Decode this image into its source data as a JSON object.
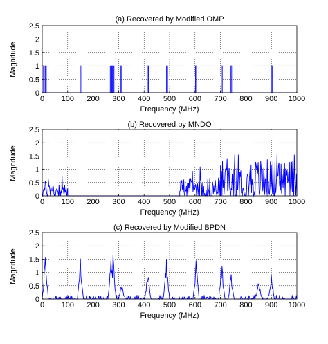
{
  "chart_data": [
    {
      "type": "line",
      "title": "(a) Recovered by Modified OMP",
      "xlabel": "Frequency (MHz)",
      "ylabel": "Magnitude",
      "xlim": [
        0,
        1000
      ],
      "ylim": [
        0,
        2.5
      ],
      "xticks": [
        0,
        100,
        200,
        300,
        400,
        500,
        600,
        700,
        800,
        900,
        1000
      ],
      "yticks": [
        0,
        0.5,
        1,
        1.5,
        2,
        2.5
      ],
      "grid": true,
      "color": "#0000ff",
      "series": [
        {
          "x": [
            0,
            5,
            5,
            8,
            8,
            12,
            12,
            16,
            16,
            1000
          ],
          "y": [
            0,
            0,
            1,
            1,
            0,
            0,
            1,
            1,
            0,
            0
          ],
          "pulses": [
            [
              5,
              8
            ],
            [
              12,
              16
            ],
            [
              148,
              152
            ],
            [
              267,
              270
            ],
            [
              273,
              276
            ],
            [
              279,
              282
            ],
            [
              308,
              312
            ],
            [
              413,
              417
            ],
            [
              488,
              492
            ],
            [
              602,
              606
            ],
            [
              703,
              707
            ],
            [
              740,
              744
            ],
            [
              900,
              904
            ]
          ]
        }
      ]
    },
    {
      "type": "line",
      "title": "(b) Recovered by MNDO",
      "xlabel": "Frequency (MHz)",
      "ylabel": "Magnitude",
      "xlim": [
        0,
        1000
      ],
      "ylim": [
        0,
        2.5
      ],
      "xticks": [
        0,
        100,
        200,
        300,
        400,
        500,
        600,
        700,
        800,
        900,
        1000
      ],
      "yticks": [
        0,
        0.5,
        1,
        1.5,
        2,
        2.5
      ],
      "grid": true,
      "color": "#0000ff",
      "series": [
        {
          "segments": [
            {
              "x0": 0,
              "x1": 100,
              "mean": 0.2,
              "amp": 0.45
            },
            {
              "x0": 540,
              "x1": 700,
              "mean": 0.25,
              "amp": 0.55
            },
            {
              "x0": 700,
              "x1": 1000,
              "mean": 0.6,
              "amp": 1.0
            }
          ]
        }
      ]
    },
    {
      "type": "line",
      "title": "(c) Recovered by Modified BPDN",
      "xlabel": "Frequency (MHz)",
      "ylabel": "Magnitude",
      "xlim": [
        0,
        1000
      ],
      "ylim": [
        0,
        2.5
      ],
      "xticks": [
        0,
        100,
        200,
        300,
        400,
        500,
        600,
        700,
        800,
        900,
        1000
      ],
      "yticks": [
        0,
        0.5,
        1,
        1.5,
        2,
        2.5
      ],
      "grid": true,
      "color": "#0000ff",
      "series": [
        {
          "peaks": [
            {
              "x": 12,
              "y": 1.6
            },
            {
              "x": 150,
              "y": 1.6
            },
            {
              "x": 270,
              "y": 1.85
            },
            {
              "x": 278,
              "y": 1.7
            },
            {
              "x": 312,
              "y": 0.65
            },
            {
              "x": 415,
              "y": 1.1
            },
            {
              "x": 488,
              "y": 1.55
            },
            {
              "x": 604,
              "y": 1.5
            },
            {
              "x": 705,
              "y": 1.5
            },
            {
              "x": 742,
              "y": 1.0
            },
            {
              "x": 850,
              "y": 0.7
            },
            {
              "x": 900,
              "y": 1.0
            }
          ],
          "noise_level": 0.15
        }
      ]
    }
  ]
}
